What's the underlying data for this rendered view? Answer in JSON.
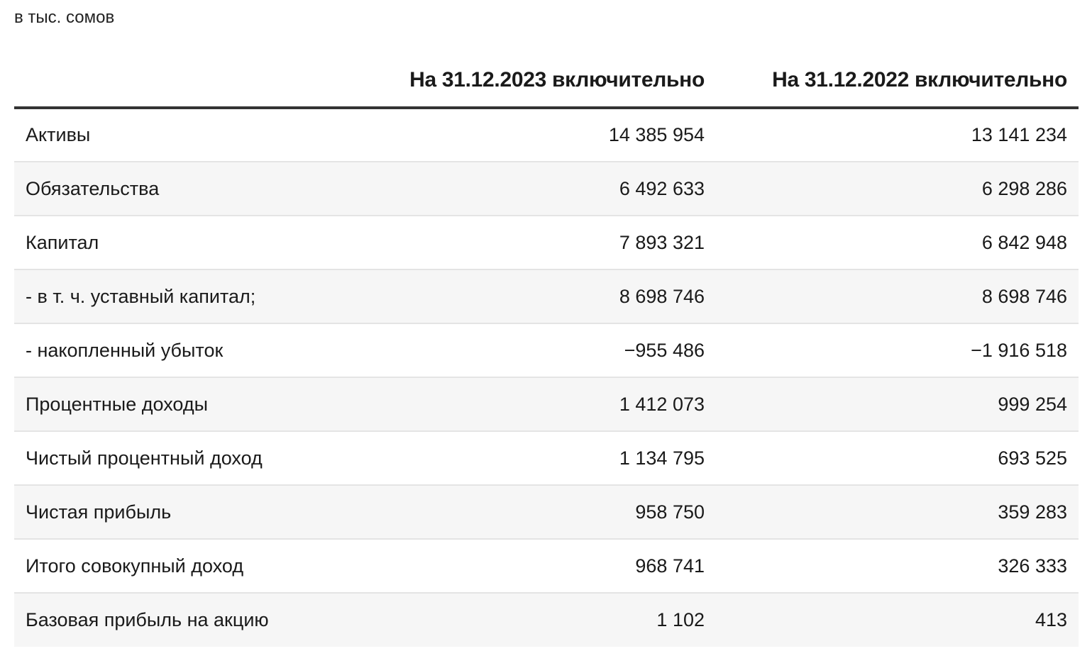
{
  "unit_note": "в тыс. сомов",
  "table": {
    "headers": [
      "",
      "На 31.12.2023 включительно",
      "На 31.12.2022 включительно"
    ],
    "rows": [
      {
        "label": "Активы",
        "y2023": "14 385 954",
        "y2022": "13 141 234"
      },
      {
        "label": "Обязательства",
        "y2023": "6 492 633",
        "y2022": "6 298 286"
      },
      {
        "label": "Капитал",
        "y2023": "7 893 321",
        "y2022": "6 842 948"
      },
      {
        "label": "- в т. ч. уставный капитал;",
        "y2023": "8 698 746",
        "y2022": "8 698 746"
      },
      {
        "label": "- накопленный убыток",
        "y2023": "−955 486",
        "y2022": "−1 916 518"
      },
      {
        "label": "Процентные доходы",
        "y2023": "1 412 073",
        "y2022": "999 254"
      },
      {
        "label": "Чистый процентный доход",
        "y2023": "1 134 795",
        "y2022": "693 525"
      },
      {
        "label": "Чистая прибыль",
        "y2023": "958 750",
        "y2022": "359 283"
      },
      {
        "label": "Итого совокупный доход",
        "y2023": "968 741",
        "y2022": "326 333"
      },
      {
        "label": "Базовая прибыль на акцию",
        "y2023": "1 102",
        "y2022": "413"
      }
    ]
  }
}
